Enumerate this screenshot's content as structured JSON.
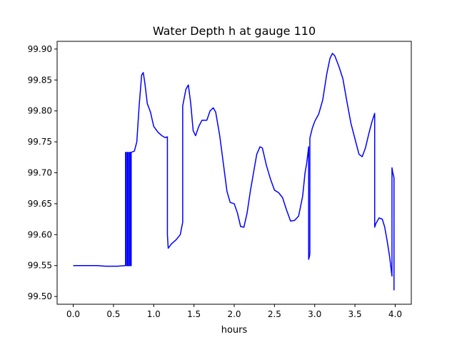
{
  "chart_data": {
    "type": "line",
    "title": "Water Depth h at gauge 110",
    "xlabel": "hours",
    "ylabel": "",
    "xlim": [
      -0.2,
      4.2
    ],
    "ylim": [
      99.4875,
      99.9125
    ],
    "xticks": [
      0.0,
      0.5,
      1.0,
      1.5,
      2.0,
      2.5,
      3.0,
      3.5,
      4.0
    ],
    "xtick_labels": [
      "0.0",
      "0.5",
      "1.0",
      "1.5",
      "2.0",
      "2.5",
      "3.0",
      "3.5",
      "4.0"
    ],
    "yticks": [
      99.5,
      99.55,
      99.6,
      99.65,
      99.7,
      99.75,
      99.8,
      99.85,
      99.9
    ],
    "ytick_labels": [
      "99.50",
      "99.55",
      "99.60",
      "99.65",
      "99.70",
      "99.75",
      "99.80",
      "99.85",
      "99.90"
    ],
    "grid": false,
    "legend": "none",
    "series": [
      {
        "color": "#0000ff",
        "points": [
          [
            0.0,
            99.55
          ],
          [
            0.3,
            99.55
          ],
          [
            0.4,
            99.549
          ],
          [
            0.55,
            99.549
          ],
          [
            0.65,
            99.55
          ],
          [
            0.65,
            99.733
          ],
          [
            0.66,
            99.733
          ],
          [
            0.66,
            99.55
          ],
          [
            0.675,
            99.55
          ],
          [
            0.675,
            99.733
          ],
          [
            0.685,
            99.733
          ],
          [
            0.685,
            99.55
          ],
          [
            0.7,
            99.55
          ],
          [
            0.7,
            99.733
          ],
          [
            0.71,
            99.733
          ],
          [
            0.71,
            99.55
          ],
          [
            0.72,
            99.55
          ],
          [
            0.72,
            99.733
          ],
          [
            0.76,
            99.735
          ],
          [
            0.79,
            99.75
          ],
          [
            0.82,
            99.81
          ],
          [
            0.85,
            99.858
          ],
          [
            0.87,
            99.862
          ],
          [
            0.89,
            99.845
          ],
          [
            0.92,
            99.812
          ],
          [
            0.96,
            99.798
          ],
          [
            1.0,
            99.775
          ],
          [
            1.05,
            99.766
          ],
          [
            1.1,
            99.76
          ],
          [
            1.14,
            99.757
          ],
          [
            1.17,
            99.758
          ],
          [
            1.17,
            99.6
          ],
          [
            1.18,
            99.578
          ],
          [
            1.22,
            99.585
          ],
          [
            1.28,
            99.592
          ],
          [
            1.33,
            99.6
          ],
          [
            1.36,
            99.62
          ],
          [
            1.36,
            99.808
          ],
          [
            1.4,
            99.835
          ],
          [
            1.43,
            99.842
          ],
          [
            1.46,
            99.812
          ],
          [
            1.49,
            99.768
          ],
          [
            1.52,
            99.76
          ],
          [
            1.56,
            99.775
          ],
          [
            1.6,
            99.785
          ],
          [
            1.66,
            99.785
          ],
          [
            1.7,
            99.8
          ],
          [
            1.74,
            99.805
          ],
          [
            1.77,
            99.798
          ],
          [
            1.82,
            99.76
          ],
          [
            1.87,
            99.71
          ],
          [
            1.91,
            99.67
          ],
          [
            1.95,
            99.652
          ],
          [
            2.0,
            99.65
          ],
          [
            2.04,
            99.635
          ],
          [
            2.08,
            99.613
          ],
          [
            2.12,
            99.612
          ],
          [
            2.16,
            99.635
          ],
          [
            2.2,
            99.67
          ],
          [
            2.24,
            99.7
          ],
          [
            2.28,
            99.73
          ],
          [
            2.32,
            99.742
          ],
          [
            2.35,
            99.74
          ],
          [
            2.4,
            99.712
          ],
          [
            2.45,
            99.69
          ],
          [
            2.5,
            99.672
          ],
          [
            2.55,
            99.668
          ],
          [
            2.6,
            99.66
          ],
          [
            2.65,
            99.64
          ],
          [
            2.7,
            99.622
          ],
          [
            2.75,
            99.623
          ],
          [
            2.8,
            99.63
          ],
          [
            2.85,
            99.662
          ],
          [
            2.88,
            99.7
          ],
          [
            2.9,
            99.715
          ],
          [
            2.925,
            99.742
          ],
          [
            2.925,
            99.56
          ],
          [
            2.935,
            99.565
          ],
          [
            2.94,
            99.57
          ],
          [
            2.94,
            99.756
          ],
          [
            2.97,
            99.772
          ],
          [
            3.0,
            99.783
          ],
          [
            3.05,
            99.795
          ],
          [
            3.1,
            99.818
          ],
          [
            3.15,
            99.86
          ],
          [
            3.19,
            99.885
          ],
          [
            3.22,
            99.893
          ],
          [
            3.25,
            99.889
          ],
          [
            3.3,
            99.872
          ],
          [
            3.35,
            99.852
          ],
          [
            3.4,
            99.815
          ],
          [
            3.45,
            99.78
          ],
          [
            3.5,
            99.755
          ],
          [
            3.55,
            99.73
          ],
          [
            3.59,
            99.726
          ],
          [
            3.63,
            99.74
          ],
          [
            3.67,
            99.762
          ],
          [
            3.71,
            99.782
          ],
          [
            3.745,
            99.796
          ],
          [
            3.745,
            99.612
          ],
          [
            3.76,
            99.618
          ],
          [
            3.8,
            99.627
          ],
          [
            3.84,
            99.625
          ],
          [
            3.87,
            99.612
          ],
          [
            3.9,
            99.59
          ],
          [
            3.93,
            99.565
          ],
          [
            3.96,
            99.533
          ],
          [
            3.96,
            99.708
          ],
          [
            3.97,
            99.7
          ],
          [
            3.98,
            99.695
          ],
          [
            3.985,
            99.692
          ],
          [
            3.985,
            99.51
          ]
        ]
      }
    ]
  }
}
